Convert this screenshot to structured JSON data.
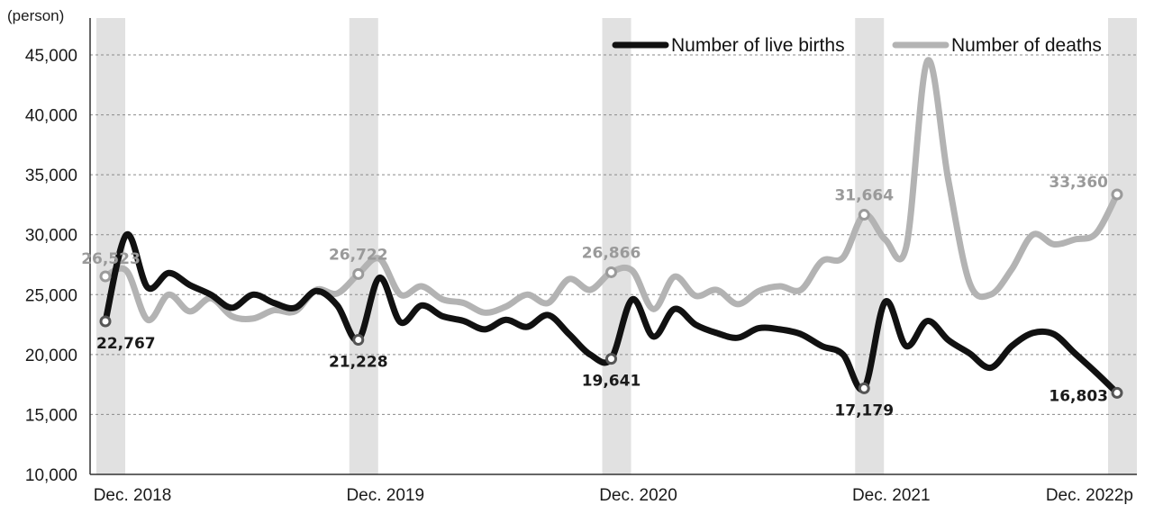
{
  "chart_data": {
    "type": "line",
    "y_unit": "(person)",
    "ylim": [
      10000,
      45000
    ],
    "y_ticks": [
      "10,000",
      "15,000",
      "20,000",
      "25,000",
      "30,000",
      "35,000",
      "40,000",
      "45,000"
    ],
    "y_tick_values": [
      10000,
      15000,
      20000,
      25000,
      30000,
      35000,
      40000,
      45000
    ],
    "x_labels": [
      {
        "text": "Dec. 2018",
        "month": 0
      },
      {
        "text": "Dec. 2019",
        "month": 12
      },
      {
        "text": "Dec. 2020",
        "month": 24
      },
      {
        "text": "Dec. 2021",
        "month": 36
      },
      {
        "text": "Dec. 2022p",
        "month": 48
      }
    ],
    "highlight_months": [
      0,
      12,
      24,
      36,
      48
    ],
    "grid": "horizontal dashed",
    "legend_position": "top-right",
    "series": [
      {
        "name": "Number of live births",
        "color": "#111111",
        "values": [
          22767,
          30000,
          25600,
          26800,
          25800,
          25000,
          23900,
          25000,
          24300,
          23900,
          25300,
          24100,
          21228,
          26400,
          22700,
          24100,
          23200,
          22800,
          22100,
          22900,
          22300,
          23300,
          21700,
          20000,
          19641,
          24600,
          21500,
          23800,
          22500,
          21800,
          21400,
          22200,
          22100,
          21700,
          20700,
          20000,
          17179,
          24400,
          20700,
          22800,
          21200,
          20100,
          18900,
          20700,
          21800,
          21700,
          20100,
          18500,
          16803
        ]
      },
      {
        "name": "Number of deaths",
        "color": "#b3b3b3",
        "values": [
          26523,
          27000,
          22900,
          25000,
          23600,
          24700,
          23200,
          23000,
          23700,
          23600,
          25400,
          25100,
          26722,
          28000,
          25000,
          25700,
          24600,
          24300,
          23500,
          24000,
          25000,
          24300,
          26300,
          25400,
          26866,
          27000,
          23800,
          26500,
          24900,
          25400,
          24200,
          25300,
          25700,
          25400,
          27800,
          28100,
          31664,
          29600,
          29000,
          44500,
          34500,
          26000,
          25000,
          27100,
          30000,
          29200,
          29600,
          30100,
          33360
        ]
      }
    ],
    "data_labels": [
      {
        "series": 0,
        "month": 0,
        "text": "22,767"
      },
      {
        "series": 0,
        "month": 12,
        "text": "21,228"
      },
      {
        "series": 0,
        "month": 24,
        "text": "19,641"
      },
      {
        "series": 0,
        "month": 36,
        "text": "17,179"
      },
      {
        "series": 0,
        "month": 48,
        "text": "16,803"
      },
      {
        "series": 1,
        "month": 0,
        "text": "26,523"
      },
      {
        "series": 1,
        "month": 12,
        "text": "26,722"
      },
      {
        "series": 1,
        "month": 24,
        "text": "26,866"
      },
      {
        "series": 1,
        "month": 36,
        "text": "31,664"
      },
      {
        "series": 1,
        "month": 48,
        "text": "33,360"
      }
    ]
  }
}
